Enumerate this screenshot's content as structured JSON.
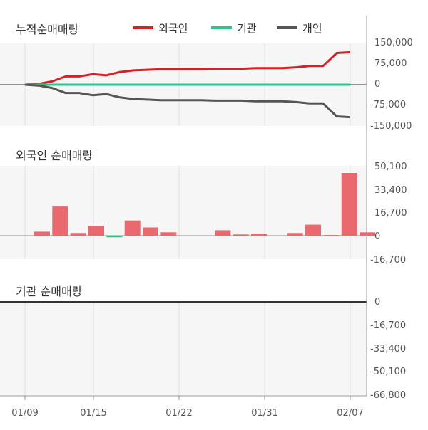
{
  "colors": {
    "foreigner": "#d81f26",
    "institution": "#2ec48c",
    "individual": "#555555",
    "bar": "#e9696f",
    "panel_bg": "#f6f6f6",
    "grid": "#e2e2e2",
    "zero": "#333333",
    "axis": "#999999"
  },
  "x_labels": [
    "01/09",
    "01/15",
    "01/22",
    "01/31",
    "02/07"
  ],
  "chart_data": [
    {
      "type": "line",
      "title": "누적순매매량",
      "legend": {
        "placement": "top",
        "entries": [
          "외국인",
          "기관",
          "개인"
        ]
      },
      "y_ticks": [
        "150,000",
        "75,000",
        "0",
        "-75,000",
        "-150,000"
      ],
      "ylim": [
        -150000,
        150000
      ],
      "series": [
        {
          "name": "외국인",
          "values": [
            0,
            3000,
            12000,
            30000,
            30000,
            38000,
            34000,
            46000,
            52000,
            54000,
            56000,
            56000,
            56000,
            56000,
            58000,
            58000,
            58000,
            60000,
            60000,
            60000,
            63000,
            68000,
            68000,
            115000,
            118000
          ]
        },
        {
          "name": "기관",
          "values": [
            0,
            0,
            0,
            0,
            0,
            0,
            0,
            0,
            0,
            0,
            0,
            0,
            0,
            0,
            0,
            0,
            0,
            0,
            0,
            0,
            0,
            0,
            0,
            0,
            0
          ]
        },
        {
          "name": "개인",
          "values": [
            0,
            -3000,
            -12000,
            -30000,
            -30000,
            -38000,
            -34000,
            -46000,
            -52000,
            -54000,
            -56000,
            -56000,
            -56000,
            -56000,
            -58000,
            -58000,
            -58000,
            -60000,
            -60000,
            -60000,
            -63000,
            -68000,
            -68000,
            -115000,
            -118000
          ]
        }
      ]
    },
    {
      "type": "bar",
      "title": "외국인 순매매량",
      "y_ticks": [
        "50,100",
        "33,400",
        "16,700",
        "0",
        "-16,700"
      ],
      "ylim": [
        -16700,
        50100
      ],
      "values": [
        3000,
        21000,
        2000,
        7000,
        -1000,
        11000,
        6000,
        2500,
        0,
        0,
        4000,
        1000,
        1500,
        0,
        2000,
        8000,
        600,
        45000,
        2500
      ]
    },
    {
      "type": "bar",
      "title": "기관 순매매량",
      "y_ticks": [
        "0",
        "-16,700",
        "-33,400",
        "-50,100",
        "-66,800"
      ],
      "ylim": [
        -66800,
        0
      ],
      "values": []
    }
  ]
}
